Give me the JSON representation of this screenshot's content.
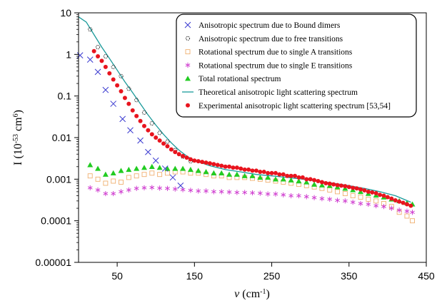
{
  "chart_data": {
    "type": "scatter",
    "title": "",
    "ylabel": {
      "base": "I (10",
      "exp1": "-53",
      "mid": " cm",
      "exp2": "6",
      "end": ")"
    },
    "xlabel": {
      "symbol": "ν",
      "base": " (cm",
      "exp": "-1",
      "end": ")"
    },
    "xlim": [
      0,
      450
    ],
    "ylim": [
      1e-05,
      10
    ],
    "yscale": "log",
    "x_ticks": [
      50,
      150,
      250,
      350,
      450
    ],
    "y_ticks": [
      {
        "value": 10,
        "label": "10"
      },
      {
        "value": 1,
        "label": "1"
      },
      {
        "value": 0.1,
        "label": "0.1"
      },
      {
        "value": 0.01,
        "label": "0.01"
      },
      {
        "value": 0.001,
        "label": "0.001"
      },
      {
        "value": 0.0001,
        "label": "0.0001"
      },
      {
        "value": 1e-05,
        "label": "0.00001"
      }
    ],
    "grid": false,
    "legend_position": "top-right",
    "series": [
      {
        "name": "Anisotropic spectrum due to Bound dimers",
        "marker": "x",
        "color": "#3a3ad0",
        "points": [
          [
            2,
            0.95
          ],
          [
            15,
            0.75
          ],
          [
            25,
            0.38
          ],
          [
            35,
            0.14
          ],
          [
            45,
            0.065
          ],
          [
            57,
            0.028
          ],
          [
            67,
            0.015
          ],
          [
            80,
            0.0085
          ],
          [
            90,
            0.0045
          ],
          [
            100,
            0.0028
          ],
          [
            112,
            0.0018
          ],
          [
            122,
            0.0011
          ],
          [
            132,
            0.0007
          ]
        ]
      },
      {
        "name": "Anisotropic spectrum due to free transitions",
        "marker": "circle-open",
        "color": "#333333",
        "points": [
          [
            15,
            4.0
          ],
          [
            25,
            1.5
          ],
          [
            35,
            0.9
          ],
          [
            45,
            0.5
          ],
          [
            55,
            0.3
          ],
          [
            65,
            0.15
          ],
          [
            75,
            0.08
          ],
          [
            85,
            0.04
          ],
          [
            95,
            0.022
          ],
          [
            105,
            0.013
          ],
          [
            115,
            0.008
          ],
          [
            125,
            0.005
          ],
          [
            135,
            0.0035
          ],
          [
            145,
            0.0027
          ]
        ]
      },
      {
        "name": "Rotational spectrum due to single A transitions",
        "marker": "square-open",
        "color": "#f0b070",
        "points": [
          [
            15,
            0.0012
          ],
          [
            25,
            0.001
          ],
          [
            35,
            0.0008
          ],
          [
            45,
            0.0009
          ],
          [
            55,
            0.00085
          ],
          [
            65,
            0.0011
          ],
          [
            75,
            0.0012
          ],
          [
            85,
            0.0013
          ],
          [
            95,
            0.0014
          ],
          [
            105,
            0.0013
          ],
          [
            115,
            0.0014
          ],
          [
            125,
            0.0015
          ],
          [
            135,
            0.0015
          ],
          [
            145,
            0.0014
          ],
          [
            155,
            0.0014
          ],
          [
            165,
            0.0013
          ],
          [
            175,
            0.0012
          ],
          [
            185,
            0.0012
          ],
          [
            195,
            0.0011
          ],
          [
            205,
            0.0011
          ],
          [
            215,
            0.0011
          ],
          [
            225,
            0.00105
          ],
          [
            235,
            0.001
          ],
          [
            245,
            0.00095
          ],
          [
            255,
            0.0009
          ],
          [
            265,
            0.00085
          ],
          [
            275,
            0.0008
          ],
          [
            285,
            0.00075
          ],
          [
            295,
            0.0007
          ],
          [
            305,
            0.00065
          ],
          [
            315,
            0.0006
          ],
          [
            325,
            0.00055
          ],
          [
            335,
            0.0005
          ],
          [
            345,
            0.00045
          ],
          [
            355,
            0.0004
          ],
          [
            365,
            0.00037
          ],
          [
            375,
            0.00033
          ],
          [
            385,
            0.0003
          ],
          [
            395,
            0.00026
          ],
          [
            405,
            0.00022
          ],
          [
            415,
            0.00016
          ],
          [
            425,
            0.00013
          ],
          [
            432,
            0.0001
          ]
        ]
      },
      {
        "name": "Rotational spectrum due to single E transitions",
        "marker": "asterisk",
        "color": "#d040d0",
        "points": [
          [
            15,
            0.00062
          ],
          [
            25,
            0.00055
          ],
          [
            35,
            0.00045
          ],
          [
            45,
            0.00045
          ],
          [
            55,
            0.0005
          ],
          [
            65,
            0.00055
          ],
          [
            75,
            0.0006
          ],
          [
            85,
            0.00062
          ],
          [
            95,
            0.00063
          ],
          [
            105,
            0.00061
          ],
          [
            115,
            0.0006
          ],
          [
            125,
            0.00058
          ],
          [
            135,
            0.00056
          ],
          [
            145,
            0.00054
          ],
          [
            155,
            0.00052
          ],
          [
            165,
            0.00052
          ],
          [
            175,
            0.0005
          ],
          [
            185,
            0.0005
          ],
          [
            195,
            0.00049
          ],
          [
            205,
            0.00048
          ],
          [
            215,
            0.00048
          ],
          [
            225,
            0.00047
          ],
          [
            235,
            0.00046
          ],
          [
            245,
            0.00044
          ],
          [
            255,
            0.00044
          ],
          [
            265,
            0.00042
          ],
          [
            275,
            0.0004
          ],
          [
            285,
            0.0004
          ],
          [
            295,
            0.00038
          ],
          [
            305,
            0.00036
          ],
          [
            315,
            0.00034
          ],
          [
            325,
            0.00033
          ],
          [
            335,
            0.00031
          ],
          [
            345,
            0.0003
          ],
          [
            355,
            0.00028
          ],
          [
            365,
            0.00026
          ],
          [
            375,
            0.00025
          ],
          [
            385,
            0.00023
          ],
          [
            395,
            0.00022
          ],
          [
            405,
            0.0002
          ],
          [
            415,
            0.00018
          ],
          [
            425,
            0.00017
          ],
          [
            432,
            0.00016
          ]
        ]
      },
      {
        "name": "Total rotational spectrum",
        "marker": "triangle",
        "color": "#22cc22",
        "points": [
          [
            15,
            0.0022
          ],
          [
            25,
            0.0018
          ],
          [
            35,
            0.0013
          ],
          [
            45,
            0.0014
          ],
          [
            55,
            0.0016
          ],
          [
            65,
            0.0017
          ],
          [
            75,
            0.0018
          ],
          [
            85,
            0.0019
          ],
          [
            95,
            0.002
          ],
          [
            105,
            0.0019
          ],
          [
            115,
            0.0018
          ],
          [
            125,
            0.0018
          ],
          [
            135,
            0.0018
          ],
          [
            145,
            0.0017
          ],
          [
            155,
            0.0016
          ],
          [
            165,
            0.0015
          ],
          [
            175,
            0.0014
          ],
          [
            185,
            0.0014
          ],
          [
            195,
            0.0013
          ],
          [
            205,
            0.0013
          ],
          [
            215,
            0.0012
          ],
          [
            225,
            0.0012
          ],
          [
            235,
            0.0011
          ],
          [
            245,
            0.0011
          ],
          [
            255,
            0.001
          ],
          [
            265,
            0.001
          ],
          [
            275,
            0.00095
          ],
          [
            285,
            0.0009
          ],
          [
            295,
            0.00085
          ],
          [
            305,
            0.00075
          ],
          [
            315,
            0.00072
          ],
          [
            325,
            0.0007
          ],
          [
            335,
            0.00065
          ],
          [
            345,
            0.0006
          ],
          [
            355,
            0.00055
          ],
          [
            365,
            0.0005
          ],
          [
            375,
            0.00045
          ],
          [
            385,
            0.00041
          ],
          [
            395,
            0.00037
          ],
          [
            405,
            0.00033
          ],
          [
            415,
            0.0003
          ],
          [
            425,
            0.00027
          ],
          [
            432,
            0.00025
          ]
        ]
      },
      {
        "name": "Theoretical anisotropic light scattering spectrum",
        "marker": "line",
        "color": "#1a9a9a",
        "points": [
          [
            0,
            8.0
          ],
          [
            10,
            6.0
          ],
          [
            20,
            3.0
          ],
          [
            30,
            1.5
          ],
          [
            40,
            0.8
          ],
          [
            50,
            0.42
          ],
          [
            60,
            0.22
          ],
          [
            70,
            0.12
          ],
          [
            80,
            0.065
          ],
          [
            90,
            0.035
          ],
          [
            100,
            0.02
          ],
          [
            110,
            0.012
          ],
          [
            120,
            0.0075
          ],
          [
            130,
            0.005
          ],
          [
            140,
            0.0036
          ],
          [
            150,
            0.0028
          ],
          [
            170,
            0.0021
          ],
          [
            190,
            0.0017
          ],
          [
            210,
            0.0015
          ],
          [
            230,
            0.0013
          ],
          [
            250,
            0.0012
          ],
          [
            270,
            0.0011
          ],
          [
            290,
            0.001
          ],
          [
            310,
            0.0009
          ],
          [
            330,
            0.0008
          ],
          [
            350,
            0.0007
          ],
          [
            370,
            0.0006
          ],
          [
            390,
            0.0005
          ],
          [
            410,
            0.0004
          ],
          [
            430,
            0.00028
          ]
        ]
      },
      {
        "name": "Experimental anisotropic light scattering spectrum [53,54]",
        "marker": "dot",
        "color": "#e8141e",
        "points": [
          [
            20,
            1.2
          ],
          [
            25,
            0.9
          ],
          [
            30,
            0.7
          ],
          [
            35,
            0.5
          ],
          [
            40,
            0.35
          ],
          [
            45,
            0.25
          ],
          [
            50,
            0.18
          ],
          [
            55,
            0.13
          ],
          [
            60,
            0.09
          ],
          [
            65,
            0.065
          ],
          [
            70,
            0.045
          ],
          [
            75,
            0.033
          ],
          [
            80,
            0.025
          ],
          [
            85,
            0.019
          ],
          [
            90,
            0.015
          ],
          [
            95,
            0.012
          ],
          [
            100,
            0.01
          ],
          [
            105,
            0.0085
          ],
          [
            110,
            0.0072
          ],
          [
            115,
            0.0062
          ],
          [
            120,
            0.0052
          ],
          [
            125,
            0.0045
          ],
          [
            130,
            0.004
          ],
          [
            135,
            0.0036
          ],
          [
            140,
            0.0033
          ],
          [
            145,
            0.003
          ],
          [
            150,
            0.0028
          ],
          [
            155,
            0.0027
          ],
          [
            160,
            0.0026
          ],
          [
            165,
            0.0025
          ],
          [
            170,
            0.0024
          ],
          [
            175,
            0.0023
          ],
          [
            180,
            0.0022
          ],
          [
            185,
            0.0021
          ],
          [
            190,
            0.002
          ],
          [
            195,
            0.002
          ],
          [
            200,
            0.0019
          ],
          [
            205,
            0.0019
          ],
          [
            210,
            0.0018
          ],
          [
            215,
            0.0017
          ],
          [
            220,
            0.0017
          ],
          [
            225,
            0.0016
          ],
          [
            230,
            0.0016
          ],
          [
            235,
            0.0015
          ],
          [
            240,
            0.0015
          ],
          [
            245,
            0.0014
          ],
          [
            250,
            0.0014
          ],
          [
            255,
            0.0014
          ],
          [
            260,
            0.0013
          ],
          [
            265,
            0.0013
          ],
          [
            270,
            0.0012
          ],
          [
            275,
            0.0012
          ],
          [
            280,
            0.0012
          ],
          [
            285,
            0.0011
          ],
          [
            290,
            0.0011
          ],
          [
            295,
            0.001
          ],
          [
            300,
            0.001
          ],
          [
            305,
            0.00095
          ],
          [
            310,
            0.0009
          ],
          [
            315,
            0.00085
          ],
          [
            320,
            0.0008
          ],
          [
            325,
            0.00078
          ],
          [
            330,
            0.00075
          ],
          [
            335,
            0.00072
          ],
          [
            340,
            0.0007
          ],
          [
            345,
            0.00068
          ],
          [
            350,
            0.00065
          ],
          [
            355,
            0.00062
          ],
          [
            360,
            0.0006
          ],
          [
            365,
            0.00057
          ],
          [
            370,
            0.00054
          ],
          [
            375,
            0.0005
          ],
          [
            380,
            0.00048
          ],
          [
            385,
            0.00046
          ],
          [
            390,
            0.00042
          ],
          [
            395,
            0.0004
          ],
          [
            400,
            0.00037
          ],
          [
            405,
            0.00034
          ],
          [
            410,
            0.00031
          ],
          [
            415,
            0.00029
          ],
          [
            420,
            0.00027
          ],
          [
            425,
            0.00025
          ],
          [
            430,
            0.00023
          ]
        ]
      }
    ]
  }
}
